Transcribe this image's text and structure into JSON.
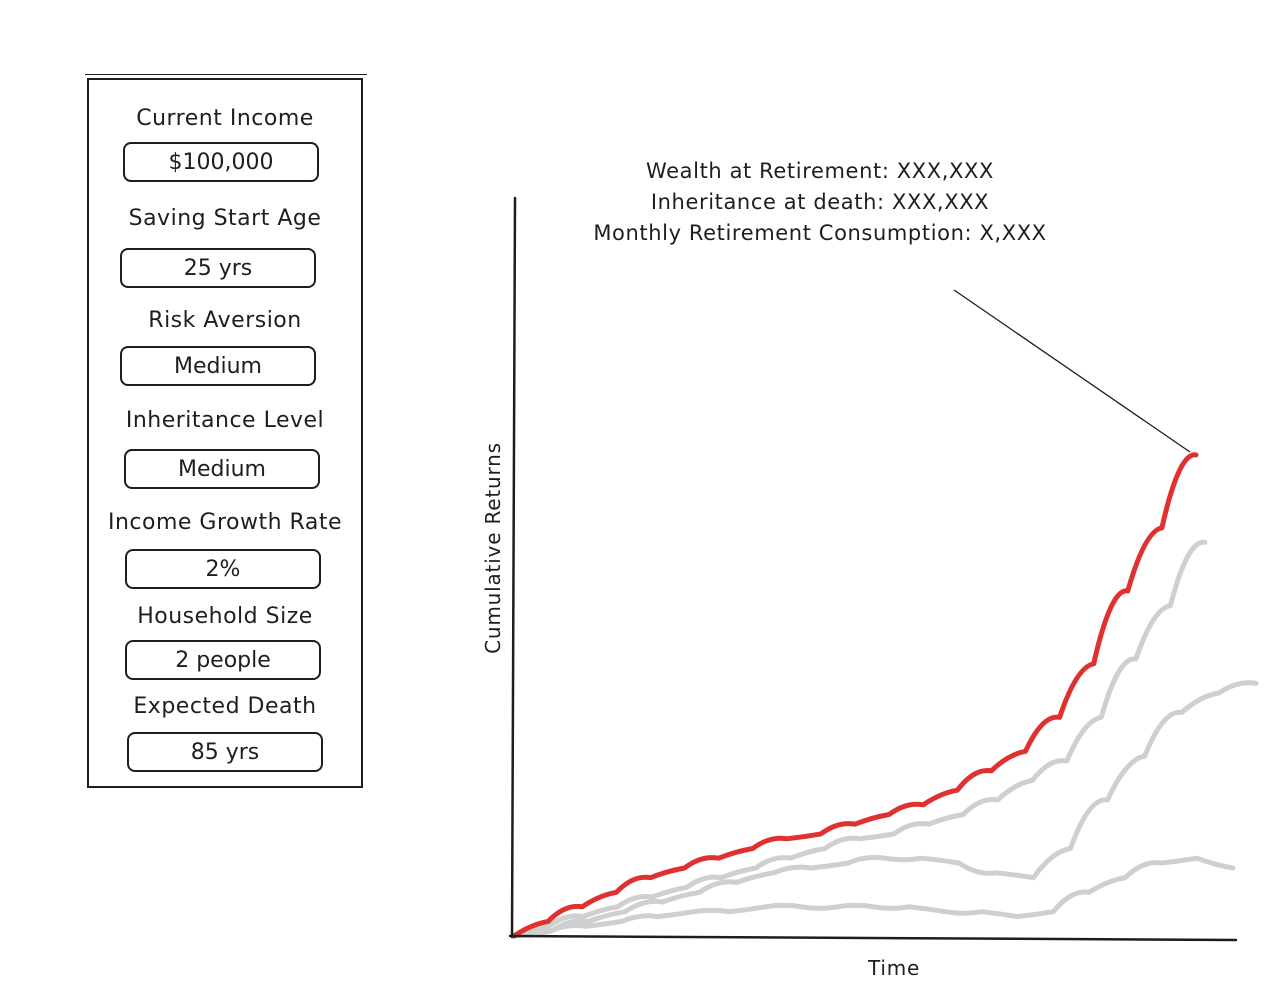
{
  "form": {
    "fields": [
      {
        "name": "current-income",
        "label": "Current Income",
        "value": "$100,000"
      },
      {
        "name": "saving-start-age",
        "label": "Saving Start Age",
        "value": "25 yrs"
      },
      {
        "name": "risk-aversion",
        "label": "Risk Aversion",
        "value": "Medium"
      },
      {
        "name": "inheritance-level",
        "label": "Inheritance Level",
        "value": "Medium"
      },
      {
        "name": "income-growth-rate",
        "label": "Income Growth Rate",
        "value": "2%"
      },
      {
        "name": "household-size",
        "label": "Household Size",
        "value": "2 people"
      },
      {
        "name": "expected-death",
        "label": "Expected Death",
        "value": "85 yrs"
      }
    ]
  },
  "annotation": {
    "wealth": "Wealth at Retirement: XXX,XXX",
    "inheritance": "Inheritance at death: XXX,XXX",
    "consumption": "Monthly Retirement Consumption: X,XXX"
  },
  "colors": {
    "ink": "#1e1e1e",
    "highlight_series": "#e03131",
    "other_series": "#cfcfcf"
  },
  "chart_data": {
    "type": "line",
    "xlabel": "Time",
    "ylabel": "Cumulative Returns",
    "grid": false,
    "legend": "none",
    "x": [
      0,
      0.05,
      0.1,
      0.15,
      0.2,
      0.25,
      0.3,
      0.35,
      0.4,
      0.45,
      0.5,
      0.55,
      0.6,
      0.65,
      0.7,
      0.75,
      0.8,
      0.85,
      0.9,
      0.95,
      1.0
    ],
    "series": [
      {
        "highlight": true,
        "values": [
          0,
          0.03,
          0.06,
          0.09,
          0.12,
          0.14,
          0.16,
          0.18,
          0.2,
          0.21,
          0.23,
          0.25,
          0.27,
          0.3,
          0.34,
          0.38,
          0.45,
          0.56,
          0.71,
          0.84,
          0.99
        ]
      },
      {
        "highlight": false,
        "values": [
          0,
          0.02,
          0.04,
          0.06,
          0.08,
          0.1,
          0.12,
          0.14,
          0.16,
          0.18,
          0.2,
          0.21,
          0.23,
          0.25,
          0.28,
          0.32,
          0.36,
          0.45,
          0.57,
          0.68,
          0.81
        ]
      },
      {
        "highlight": false,
        "values": [
          0,
          0.01,
          0.03,
          0.05,
          0.07,
          0.09,
          0.11,
          0.13,
          0.14,
          0.15,
          0.16,
          0.16,
          0.15,
          0.13,
          0.12,
          0.18,
          0.28,
          0.37,
          0.46,
          0.5,
          0.52
        ]
      },
      {
        "highlight": false,
        "values": [
          0,
          0.01,
          0.02,
          0.03,
          0.04,
          0.05,
          0.05,
          0.06,
          0.06,
          0.06,
          0.06,
          0.06,
          0.05,
          0.05,
          0.04,
          0.05,
          0.09,
          0.12,
          0.15,
          0.16,
          0.14
        ]
      }
    ]
  }
}
